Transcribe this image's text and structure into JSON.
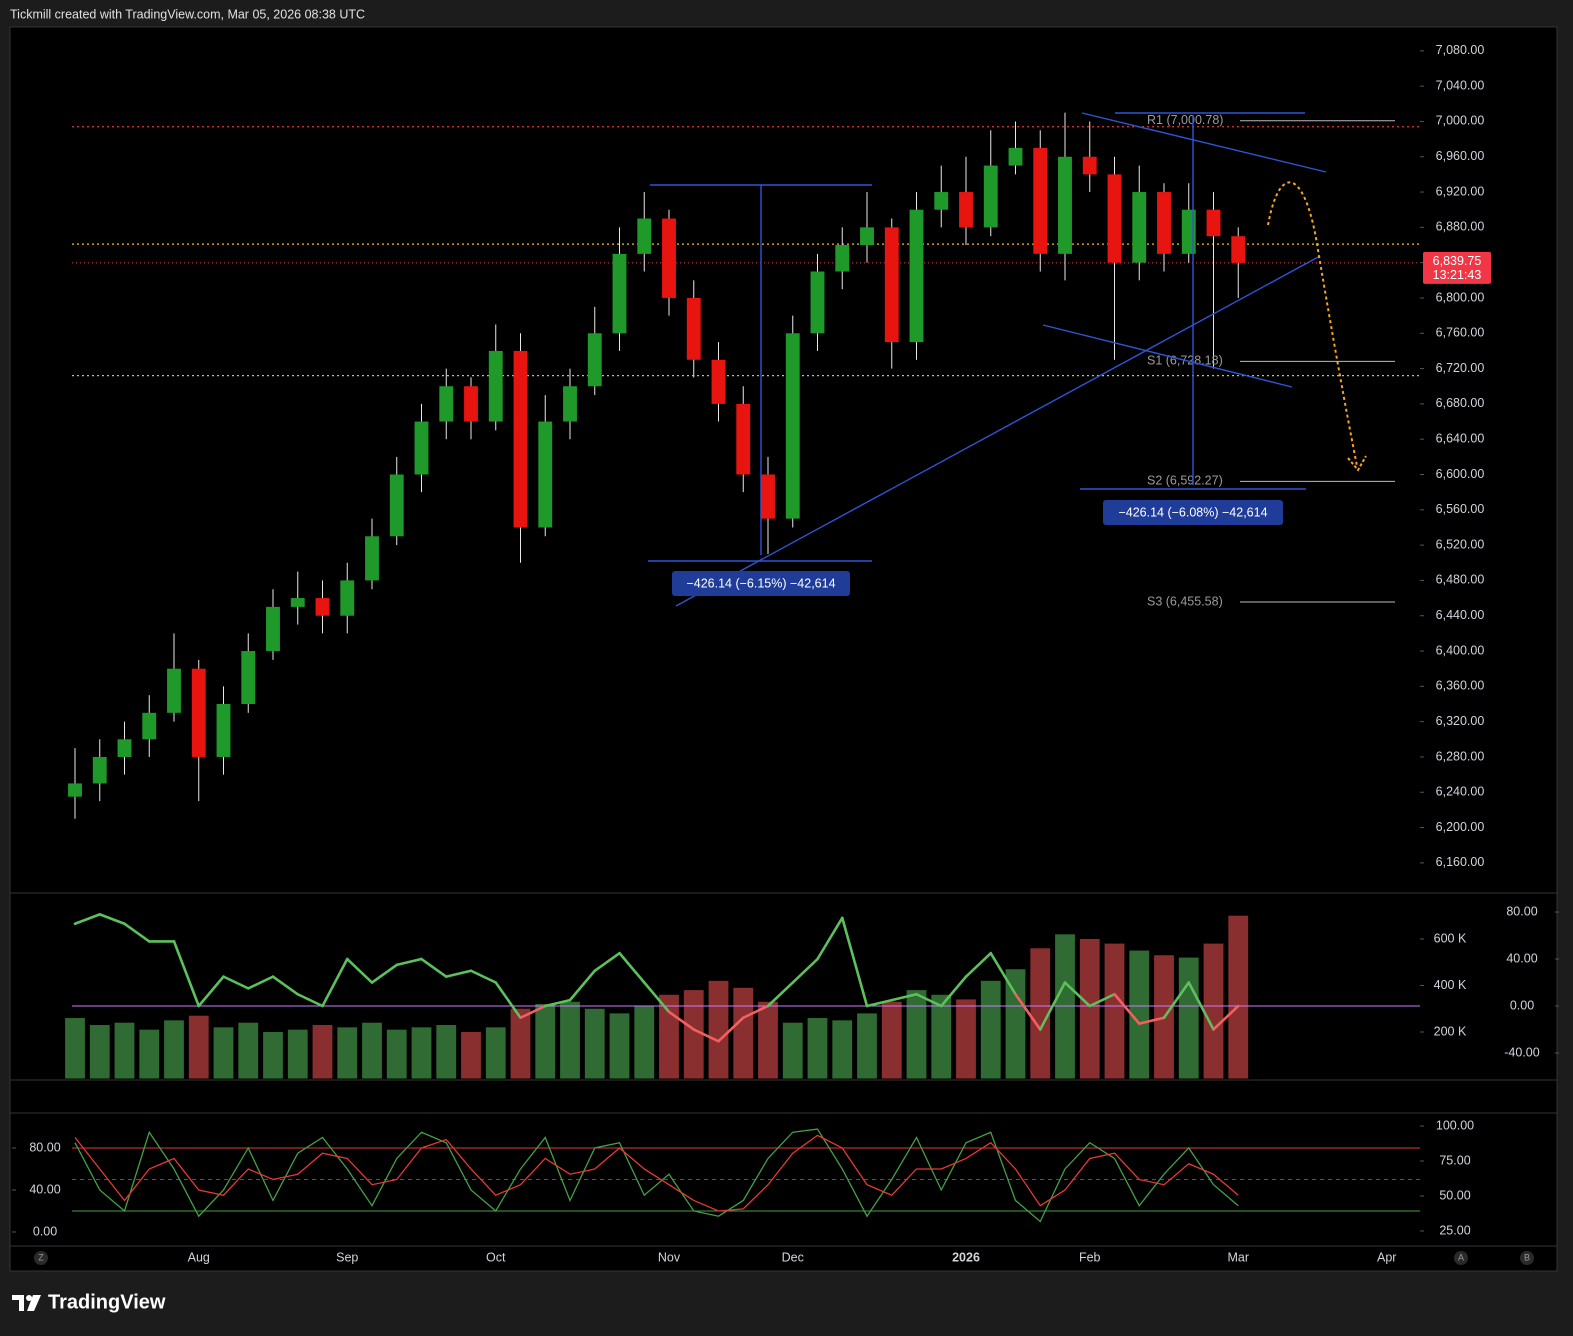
{
  "header": "Tickmill created with TradingView.com, Mar 05, 2026 08:38 UTC",
  "brand": "TradingView",
  "buttons": [
    "Z",
    "A",
    "B"
  ],
  "measures": [
    {
      "label": "−426.14 (−6.15%) −42,614"
    },
    {
      "label": "−426.14 (−6.08%) −42,614"
    }
  ],
  "chart_data": [
    {
      "type": "candlestick",
      "categories": [
        null,
        null,
        null,
        null,
        null,
        "Aug",
        null,
        null,
        null,
        null,
        null,
        "Sep",
        null,
        null,
        null,
        null,
        null,
        "Oct",
        null,
        null,
        null,
        null,
        null,
        null,
        "Nov",
        null,
        null,
        null,
        null,
        "Dec",
        null,
        null,
        null,
        null,
        null,
        null,
        "2026",
        null,
        null,
        null,
        null,
        "Feb",
        null,
        null,
        null,
        null,
        null,
        "Mar",
        null,
        null,
        null,
        null,
        null,
        "Apr"
      ],
      "open": [
        6235,
        6250,
        6280,
        6300,
        6330,
        6380,
        6280,
        6340,
        6400,
        6450,
        6460,
        6440,
        6480,
        6530,
        6600,
        6660,
        6700,
        6660,
        6740,
        6540,
        6660,
        6700,
        6760,
        6850,
        6890,
        6800,
        6730,
        6680,
        6600,
        6550,
        6760,
        6830,
        6860,
        6880,
        6750,
        6900,
        6920,
        6880,
        6950,
        6970,
        6850,
        6960,
        6940,
        6840,
        6920,
        6850,
        6900,
        6870,
        null,
        null,
        null,
        null,
        null,
        null
      ],
      "high": [
        6290,
        6300,
        6320,
        6350,
        6420,
        6390,
        6360,
        6420,
        6470,
        6490,
        6480,
        6500,
        6550,
        6620,
        6680,
        6720,
        6710,
        6770,
        6760,
        6690,
        6720,
        6790,
        6880,
        6920,
        6900,
        6820,
        6750,
        6700,
        6620,
        6780,
        6850,
        6880,
        6920,
        6890,
        6920,
        6950,
        6960,
        6990,
        7000,
        6990,
        7010,
        7000,
        6960,
        6950,
        6930,
        6930,
        6920,
        6880,
        null,
        null,
        null,
        null,
        null,
        null
      ],
      "low": [
        6210,
        6230,
        6260,
        6280,
        6320,
        6230,
        6260,
        6330,
        6390,
        6430,
        6420,
        6420,
        6470,
        6520,
        6580,
        6640,
        6640,
        6650,
        6500,
        6530,
        6640,
        6690,
        6740,
        6830,
        6780,
        6710,
        6660,
        6580,
        6510,
        6540,
        6740,
        6810,
        6840,
        6720,
        6730,
        6880,
        6860,
        6870,
        6940,
        6830,
        6820,
        6920,
        6730,
        6820,
        6830,
        6840,
        6720,
        6800,
        null,
        null,
        null,
        null,
        null,
        null
      ],
      "close": [
        6250,
        6280,
        6300,
        6330,
        6380,
        6280,
        6340,
        6400,
        6450,
        6460,
        6440,
        6480,
        6530,
        6600,
        6660,
        6700,
        6660,
        6740,
        6540,
        6660,
        6700,
        6760,
        6850,
        6890,
        6800,
        6730,
        6680,
        6600,
        6550,
        6760,
        6830,
        6860,
        6880,
        6750,
        6900,
        6920,
        6880,
        6950,
        6970,
        6850,
        6960,
        6940,
        6840,
        6920,
        6850,
        6900,
        6870,
        6839.75,
        null,
        null,
        null,
        null,
        null,
        null
      ],
      "up_color": "#1f9a2a",
      "down_color": "#e8140f",
      "ylim": [
        6127,
        7107
      ],
      "yticks": [
        {
          "value": 7080,
          "label": "7,080.00"
        },
        {
          "value": 7040,
          "label": "7,040.00"
        },
        {
          "value": 7000,
          "label": "7,000.00"
        },
        {
          "value": 6960,
          "label": "6,960.00"
        },
        {
          "value": 6920,
          "label": "6,920.00"
        },
        {
          "value": 6880,
          "label": "6,880.00"
        },
        {
          "value": 6840,
          "label": "6,840.00"
        },
        {
          "value": 6800,
          "label": "6,800.00"
        },
        {
          "value": 6760,
          "label": "6,760.00"
        },
        {
          "value": 6720,
          "label": "6,720.00"
        },
        {
          "value": 6680,
          "label": "6,680.00"
        },
        {
          "value": 6640,
          "label": "6,640.00"
        },
        {
          "value": 6600,
          "label": "6,600.00"
        },
        {
          "value": 6560,
          "label": "6,560.00"
        },
        {
          "value": 6520,
          "label": "6,520.00"
        },
        {
          "value": 6480,
          "label": "6,480.00"
        },
        {
          "value": 6440,
          "label": "6,440.00"
        },
        {
          "value": 6400,
          "label": "6,400.00"
        },
        {
          "value": 6360,
          "label": "6,360.00"
        },
        {
          "value": 6320,
          "label": "6,320.00"
        },
        {
          "value": 6280,
          "label": "6,280.00"
        },
        {
          "value": 6240,
          "label": "6,240.00"
        },
        {
          "value": 6200,
          "label": "6,200.00"
        },
        {
          "value": 6160,
          "label": "6,160.00"
        }
      ],
      "grid": false,
      "levels": [
        {
          "value": 6994,
          "color": "#e53935"
        },
        {
          "value": 6861,
          "color": "#f0c020"
        },
        {
          "value": 6712,
          "color": "#b5d63a"
        }
      ],
      "pivots": [
        {
          "label": "R1 (7,000.78)",
          "value": 7000.78
        },
        {
          "label": "S1 (6,728.18)",
          "value": 6728.18
        },
        {
          "label": "S2 (6,592.27)",
          "value": 6592.27
        },
        {
          "label": "S3 (6,455.58)",
          "value": 6455.58
        }
      ],
      "last_price": {
        "value": 6839.75,
        "label": "6,839.75",
        "countdown": "13:21:43",
        "color": "#f23645"
      }
    },
    {
      "type": "combo",
      "series": [
        {
          "type": "bar",
          "axis": "y2",
          "up_color": "#2f6b32",
          "down_color": "#8a2f2f",
          "values": [
            260000,
            230000,
            240000,
            210000,
            250000,
            270000,
            220000,
            240000,
            200000,
            210000,
            230000,
            220000,
            240000,
            210000,
            220000,
            230000,
            200000,
            220000,
            300000,
            320000,
            330000,
            300000,
            280000,
            310000,
            360000,
            380000,
            420000,
            390000,
            330000,
            240000,
            260000,
            250000,
            280000,
            330000,
            380000,
            360000,
            340000,
            420000,
            470000,
            560000,
            620000,
            600000,
            580000,
            550000,
            530000,
            520000,
            580000,
            700000,
            null,
            null,
            null,
            null,
            null,
            null
          ]
        },
        {
          "type": "line",
          "color": "#5cc05c",
          "negative_color": "#f26060",
          "values": [
            70,
            78,
            70,
            55,
            55,
            0,
            25,
            15,
            25,
            10,
            0,
            40,
            20,
            35,
            40,
            25,
            30,
            20,
            -10,
            0,
            5,
            30,
            45,
            20,
            -5,
            -20,
            -30,
            -10,
            0,
            20,
            40,
            75,
            0,
            5,
            10,
            0,
            25,
            45,
            10,
            -20,
            20,
            0,
            10,
            -15,
            -10,
            20,
            -20,
            0,
            null,
            null,
            null,
            null,
            null,
            null
          ]
        }
      ],
      "zero_line": "#c77dff",
      "ylim": [
        -63,
        94.5
      ],
      "yticks": [
        {
          "value": 80,
          "label": "80.00"
        },
        {
          "value": 40,
          "label": "40.00"
        },
        {
          "value": 0,
          "label": "0.00"
        },
        {
          "value": -40,
          "label": "-40.00"
        }
      ],
      "y2lim": [
        -6450,
        789000
      ],
      "y2ticks": [
        {
          "value": 600000,
          "label": "600 K"
        },
        {
          "value": 400000,
          "label": "400 K"
        },
        {
          "value": 200000,
          "label": "200 K"
        }
      ]
    },
    {
      "type": "line",
      "series": [
        {
          "color": "#43a047",
          "values": [
            85,
            40,
            20,
            95,
            60,
            15,
            40,
            80,
            30,
            75,
            90,
            60,
            25,
            70,
            95,
            85,
            40,
            20,
            60,
            90,
            30,
            80,
            85,
            35,
            55,
            20,
            15,
            30,
            70,
            95,
            98,
            60,
            15,
            50,
            90,
            40,
            85,
            95,
            30,
            10,
            60,
            85,
            70,
            25,
            55,
            80,
            45,
            25,
            null,
            null,
            null,
            null,
            null,
            null
          ]
        },
        {
          "color": "#e53935",
          "values": [
            90,
            60,
            30,
            60,
            70,
            40,
            35,
            60,
            50,
            55,
            75,
            70,
            45,
            50,
            80,
            88,
            60,
            35,
            45,
            70,
            55,
            60,
            80,
            60,
            45,
            30,
            20,
            22,
            45,
            75,
            92,
            80,
            45,
            35,
            60,
            60,
            70,
            85,
            60,
            25,
            40,
            70,
            75,
            50,
            45,
            65,
            55,
            35,
            null,
            null,
            null,
            null,
            null,
            null
          ]
        }
      ],
      "bands": [
        {
          "value": 80,
          "color": "#e53935"
        },
        {
          "value": 20,
          "color": "#43a047"
        },
        {
          "value": 50,
          "color": "#555555",
          "dash": true
        }
      ],
      "ylim": [
        -12.4,
        111.4
      ],
      "yticks": [
        {
          "value": 80,
          "label": "80.00"
        },
        {
          "value": 40,
          "label": "40.00"
        },
        {
          "value": 0,
          "label": "0.00"
        }
      ],
      "y2lim": [
        15,
        107.9
      ],
      "y2ticks": [
        {
          "value": 100,
          "label": "100.00"
        },
        {
          "value": 75,
          "label": "75.00"
        },
        {
          "value": 50,
          "label": "50.00"
        },
        {
          "value": 25,
          "label": "25.00"
        }
      ]
    }
  ]
}
